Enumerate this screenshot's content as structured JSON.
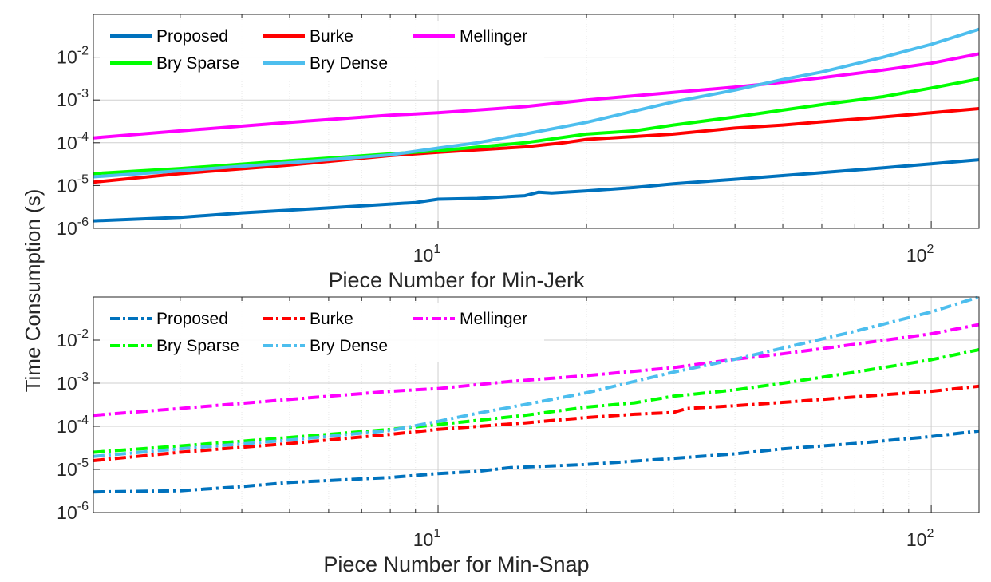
{
  "figure": {
    "ylabel": "Time Consumption (s)",
    "colors": {
      "Proposed": "#0072BD",
      "Burke": "#FF0000",
      "Mellinger": "#FF00FF",
      "Bry Sparse": "#00FF00",
      "Bry Dense": "#4DBEEE"
    }
  },
  "chart_data": [
    {
      "type": "line",
      "xlabel": "Piece Number for Min-Jerk",
      "ylabel": "Time Consumption (s)",
      "x_scale": "log",
      "y_scale": "log",
      "xlim": [
        2,
        125
      ],
      "ylim": [
        1e-06,
        0.1
      ],
      "x_ticks": [
        {
          "value": 10,
          "base": "10",
          "exp": "1"
        },
        {
          "value": 100,
          "base": "10",
          "exp": "2"
        }
      ],
      "y_ticks": [
        {
          "value": 1e-06,
          "base": "10",
          "exp": "-6"
        },
        {
          "value": 1e-05,
          "base": "10",
          "exp": "-5"
        },
        {
          "value": 0.0001,
          "base": "10",
          "exp": "-4"
        },
        {
          "value": 0.001,
          "base": "10",
          "exp": "-3"
        },
        {
          "value": 0.01,
          "base": "10",
          "exp": "-2"
        }
      ],
      "grid": true,
      "line_style": "solid",
      "legend_position": "top-left",
      "series": [
        {
          "name": "Proposed",
          "color": "#0072BD",
          "points": [
            [
              2,
              1.5e-06
            ],
            [
              3,
              1.8e-06
            ],
            [
              4,
              2.3e-06
            ],
            [
              6,
              3e-06
            ],
            [
              9,
              4e-06
            ],
            [
              10,
              4.8e-06
            ],
            [
              12,
              5e-06
            ],
            [
              15,
              5.8e-06
            ],
            [
              16,
              7e-06
            ],
            [
              17,
              6.7e-06
            ],
            [
              20,
              7.5e-06
            ],
            [
              25,
              9e-06
            ],
            [
              30,
              1.1e-05
            ],
            [
              40,
              1.4e-05
            ],
            [
              50,
              1.7e-05
            ],
            [
              60,
              2e-05
            ],
            [
              80,
              2.6e-05
            ],
            [
              100,
              3.2e-05
            ],
            [
              125,
              4e-05
            ]
          ]
        },
        {
          "name": "Burke",
          "color": "#FF0000",
          "points": [
            [
              2,
              1.2e-05
            ],
            [
              3,
              1.9e-05
            ],
            [
              5,
              3e-05
            ],
            [
              8,
              5e-05
            ],
            [
              10,
              6e-05
            ],
            [
              15,
              8e-05
            ],
            [
              18,
              0.0001
            ],
            [
              20,
              0.00012
            ],
            [
              25,
              0.00014
            ],
            [
              30,
              0.00016
            ],
            [
              40,
              0.00022
            ],
            [
              50,
              0.00026
            ],
            [
              60,
              0.00031
            ],
            [
              80,
              0.0004
            ],
            [
              100,
              0.0005
            ],
            [
              125,
              0.00063
            ]
          ]
        },
        {
          "name": "Mellinger",
          "color": "#FF00FF",
          "points": [
            [
              2,
              0.00013
            ],
            [
              3,
              0.00019
            ],
            [
              5,
              0.0003
            ],
            [
              8,
              0.00044
            ],
            [
              10,
              0.0005
            ],
            [
              15,
              0.0007
            ],
            [
              20,
              0.001
            ],
            [
              30,
              0.0015
            ],
            [
              40,
              0.002
            ],
            [
              50,
              0.0026
            ],
            [
              60,
              0.0033
            ],
            [
              80,
              0.005
            ],
            [
              100,
              0.0072
            ],
            [
              125,
              0.012
            ]
          ]
        },
        {
          "name": "Bry Sparse",
          "color": "#00FF00",
          "points": [
            [
              2,
              1.9e-05
            ],
            [
              3,
              2.5e-05
            ],
            [
              5,
              3.8e-05
            ],
            [
              8,
              5.5e-05
            ],
            [
              10,
              6.5e-05
            ],
            [
              15,
              0.0001
            ],
            [
              20,
              0.00016
            ],
            [
              25,
              0.00019
            ],
            [
              30,
              0.00026
            ],
            [
              40,
              0.0004
            ],
            [
              50,
              0.00058
            ],
            [
              60,
              0.00078
            ],
            [
              80,
              0.0012
            ],
            [
              100,
              0.0019
            ],
            [
              125,
              0.0031
            ]
          ]
        },
        {
          "name": "Bry Dense",
          "color": "#4DBEEE",
          "points": [
            [
              2,
              1.6e-05
            ],
            [
              3,
              2.2e-05
            ],
            [
              5,
              3.4e-05
            ],
            [
              8,
              5.2e-05
            ],
            [
              10,
              7.5e-05
            ],
            [
              12,
              0.0001
            ],
            [
              15,
              0.00016
            ],
            [
              20,
              0.0003
            ],
            [
              25,
              0.00055
            ],
            [
              30,
              0.0009
            ],
            [
              40,
              0.0017
            ],
            [
              50,
              0.003
            ],
            [
              60,
              0.0045
            ],
            [
              80,
              0.01
            ],
            [
              100,
              0.02
            ],
            [
              125,
              0.045
            ]
          ]
        }
      ]
    },
    {
      "type": "line",
      "xlabel": "Piece Number for Min-Snap",
      "ylabel": "Time Consumption (s)",
      "x_scale": "log",
      "y_scale": "log",
      "xlim": [
        2,
        125
      ],
      "ylim": [
        1e-06,
        0.1
      ],
      "x_ticks": [
        {
          "value": 10,
          "base": "10",
          "exp": "1"
        },
        {
          "value": 100,
          "base": "10",
          "exp": "2"
        }
      ],
      "y_ticks": [
        {
          "value": 1e-06,
          "base": "10",
          "exp": "-6"
        },
        {
          "value": 1e-05,
          "base": "10",
          "exp": "-5"
        },
        {
          "value": 0.0001,
          "base": "10",
          "exp": "-4"
        },
        {
          "value": 0.001,
          "base": "10",
          "exp": "-3"
        },
        {
          "value": 0.01,
          "base": "10",
          "exp": "-2"
        }
      ],
      "grid": true,
      "line_style": "dash-dot",
      "legend_position": "top-left",
      "series": [
        {
          "name": "Proposed",
          "color": "#0072BD",
          "points": [
            [
              2,
              3e-06
            ],
            [
              3,
              3.2e-06
            ],
            [
              4,
              4e-06
            ],
            [
              5,
              5e-06
            ],
            [
              8,
              6.5e-06
            ],
            [
              10,
              8e-06
            ],
            [
              12,
              9e-06
            ],
            [
              14,
              1.1e-05
            ],
            [
              20,
              1.3e-05
            ],
            [
              30,
              1.8e-05
            ],
            [
              40,
              2.3e-05
            ],
            [
              50,
              3e-05
            ],
            [
              70,
              4e-05
            ],
            [
              100,
              5.8e-05
            ],
            [
              125,
              7.8e-05
            ]
          ]
        },
        {
          "name": "Burke",
          "color": "#FF0000",
          "points": [
            [
              2,
              1.6e-05
            ],
            [
              3,
              2.5e-05
            ],
            [
              5,
              4e-05
            ],
            [
              8,
              6.5e-05
            ],
            [
              10,
              8.5e-05
            ],
            [
              15,
              0.00012
            ],
            [
              20,
              0.00016
            ],
            [
              25,
              0.00019
            ],
            [
              30,
              0.00021
            ],
            [
              32,
              0.00026
            ],
            [
              40,
              0.0003
            ],
            [
              50,
              0.00036
            ],
            [
              70,
              0.00048
            ],
            [
              100,
              0.00065
            ],
            [
              125,
              0.00085
            ]
          ]
        },
        {
          "name": "Mellinger",
          "color": "#FF00FF",
          "points": [
            [
              2,
              0.00018
            ],
            [
              3,
              0.00026
            ],
            [
              5,
              0.00042
            ],
            [
              8,
              0.00065
            ],
            [
              10,
              0.00075
            ],
            [
              14,
              0.0011
            ],
            [
              20,
              0.0015
            ],
            [
              30,
              0.0023
            ],
            [
              40,
              0.0036
            ],
            [
              50,
              0.0048
            ],
            [
              70,
              0.008
            ],
            [
              100,
              0.014
            ],
            [
              125,
              0.023
            ]
          ]
        },
        {
          "name": "Bry Sparse",
          "color": "#00FF00",
          "points": [
            [
              2,
              2.5e-05
            ],
            [
              3,
              3.5e-05
            ],
            [
              5,
              5.5e-05
            ],
            [
              8,
              8.5e-05
            ],
            [
              10,
              0.00011
            ],
            [
              15,
              0.00018
            ],
            [
              20,
              0.00028
            ],
            [
              25,
              0.00035
            ],
            [
              30,
              0.0005
            ],
            [
              40,
              0.0007
            ],
            [
              50,
              0.001
            ],
            [
              70,
              0.0018
            ],
            [
              100,
              0.0035
            ],
            [
              125,
              0.006
            ]
          ]
        },
        {
          "name": "Bry Dense",
          "color": "#4DBEEE",
          "points": [
            [
              2,
              2e-05
            ],
            [
              3,
              3e-05
            ],
            [
              5,
              4.8e-05
            ],
            [
              8,
              8e-05
            ],
            [
              10,
              0.00013
            ],
            [
              12,
              0.0002
            ],
            [
              15,
              0.00032
            ],
            [
              20,
              0.0006
            ],
            [
              25,
              0.0011
            ],
            [
              30,
              0.0018
            ],
            [
              40,
              0.0036
            ],
            [
              50,
              0.0065
            ],
            [
              70,
              0.016
            ],
            [
              100,
              0.045
            ],
            [
              125,
              0.1
            ]
          ]
        }
      ]
    }
  ]
}
